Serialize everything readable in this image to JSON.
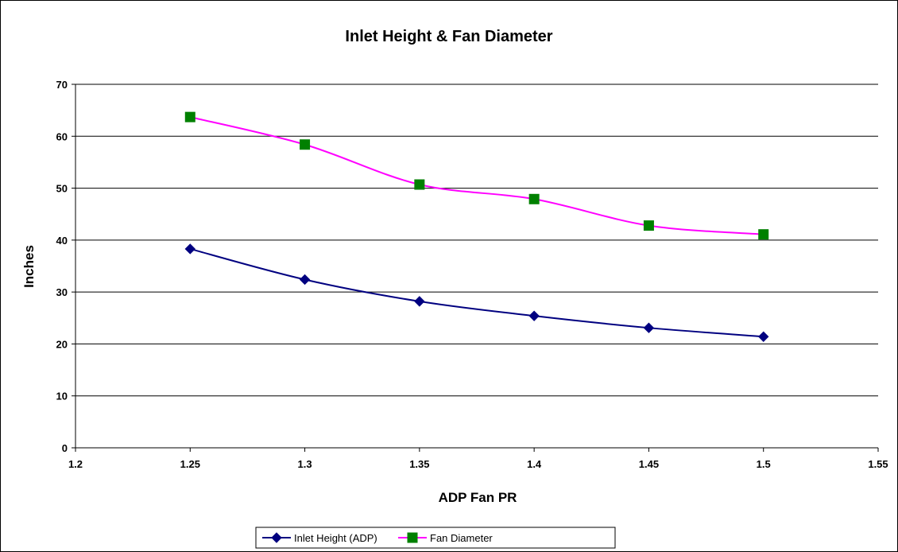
{
  "chart_data": {
    "type": "line",
    "title": "Inlet Height & Fan Diameter",
    "xlabel": "ADP Fan PR",
    "ylabel": "Inches",
    "xlim": [
      1.2,
      1.55
    ],
    "ylim": [
      0,
      70
    ],
    "x_ticks": [
      "1.2",
      "1.25",
      "1.3",
      "1.35",
      "1.4",
      "1.45",
      "1.5",
      "1.55"
    ],
    "y_ticks": [
      "0",
      "10",
      "20",
      "30",
      "40",
      "50",
      "60",
      "70"
    ],
    "grid": "horizontal",
    "legend_position": "bottom",
    "series": [
      {
        "name": "Inlet Height (ADP)",
        "x": [
          1.25,
          1.3,
          1.35,
          1.4,
          1.45,
          1.5
        ],
        "values": [
          38.3,
          32.4,
          28.2,
          25.4,
          23.1,
          21.4
        ],
        "line_color": "#000080",
        "marker": "diamond",
        "marker_color": "#000080"
      },
      {
        "name": "Fan Diameter",
        "x": [
          1.25,
          1.3,
          1.35,
          1.4,
          1.45,
          1.5
        ],
        "values": [
          63.7,
          58.4,
          50.7,
          47.9,
          42.8,
          41.1
        ],
        "line_color": "#ff00ff",
        "marker": "square",
        "marker_color": "#008000"
      }
    ]
  }
}
